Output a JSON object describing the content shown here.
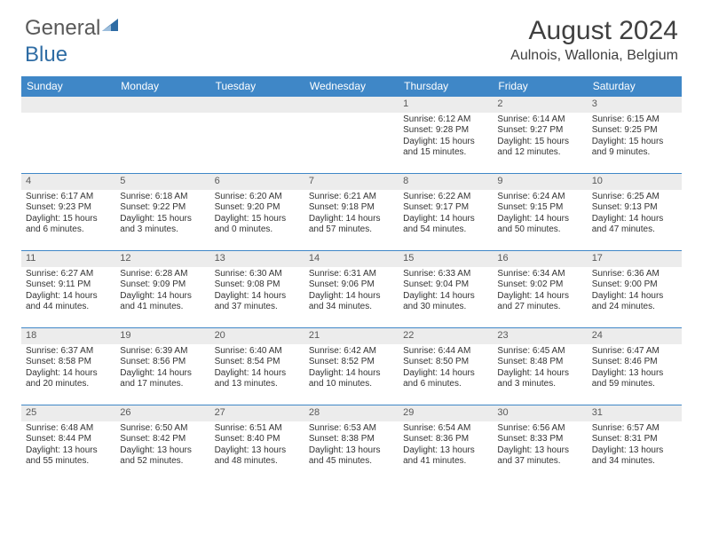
{
  "logo": {
    "text1": "General",
    "text2": "Blue"
  },
  "title": "August 2024",
  "location": "Aulnois, Wallonia, Belgium",
  "colors": {
    "header_bg": "#3f87c7",
    "header_text": "#ffffff",
    "daynum_bg": "#ececec",
    "text": "#333333",
    "border": "#3f87c7",
    "logo_gray": "#595959",
    "logo_blue": "#2e6ca4"
  },
  "dayNames": [
    "Sunday",
    "Monday",
    "Tuesday",
    "Wednesday",
    "Thursday",
    "Friday",
    "Saturday"
  ],
  "weeks": [
    [
      null,
      null,
      null,
      null,
      {
        "n": "1",
        "sr": "Sunrise: 6:12 AM",
        "ss": "Sunset: 9:28 PM",
        "dl": "Daylight: 15 hours and 15 minutes."
      },
      {
        "n": "2",
        "sr": "Sunrise: 6:14 AM",
        "ss": "Sunset: 9:27 PM",
        "dl": "Daylight: 15 hours and 12 minutes."
      },
      {
        "n": "3",
        "sr": "Sunrise: 6:15 AM",
        "ss": "Sunset: 9:25 PM",
        "dl": "Daylight: 15 hours and 9 minutes."
      }
    ],
    [
      {
        "n": "4",
        "sr": "Sunrise: 6:17 AM",
        "ss": "Sunset: 9:23 PM",
        "dl": "Daylight: 15 hours and 6 minutes."
      },
      {
        "n": "5",
        "sr": "Sunrise: 6:18 AM",
        "ss": "Sunset: 9:22 PM",
        "dl": "Daylight: 15 hours and 3 minutes."
      },
      {
        "n": "6",
        "sr": "Sunrise: 6:20 AM",
        "ss": "Sunset: 9:20 PM",
        "dl": "Daylight: 15 hours and 0 minutes."
      },
      {
        "n": "7",
        "sr": "Sunrise: 6:21 AM",
        "ss": "Sunset: 9:18 PM",
        "dl": "Daylight: 14 hours and 57 minutes."
      },
      {
        "n": "8",
        "sr": "Sunrise: 6:22 AM",
        "ss": "Sunset: 9:17 PM",
        "dl": "Daylight: 14 hours and 54 minutes."
      },
      {
        "n": "9",
        "sr": "Sunrise: 6:24 AM",
        "ss": "Sunset: 9:15 PM",
        "dl": "Daylight: 14 hours and 50 minutes."
      },
      {
        "n": "10",
        "sr": "Sunrise: 6:25 AM",
        "ss": "Sunset: 9:13 PM",
        "dl": "Daylight: 14 hours and 47 minutes."
      }
    ],
    [
      {
        "n": "11",
        "sr": "Sunrise: 6:27 AM",
        "ss": "Sunset: 9:11 PM",
        "dl": "Daylight: 14 hours and 44 minutes."
      },
      {
        "n": "12",
        "sr": "Sunrise: 6:28 AM",
        "ss": "Sunset: 9:09 PM",
        "dl": "Daylight: 14 hours and 41 minutes."
      },
      {
        "n": "13",
        "sr": "Sunrise: 6:30 AM",
        "ss": "Sunset: 9:08 PM",
        "dl": "Daylight: 14 hours and 37 minutes."
      },
      {
        "n": "14",
        "sr": "Sunrise: 6:31 AM",
        "ss": "Sunset: 9:06 PM",
        "dl": "Daylight: 14 hours and 34 minutes."
      },
      {
        "n": "15",
        "sr": "Sunrise: 6:33 AM",
        "ss": "Sunset: 9:04 PM",
        "dl": "Daylight: 14 hours and 30 minutes."
      },
      {
        "n": "16",
        "sr": "Sunrise: 6:34 AM",
        "ss": "Sunset: 9:02 PM",
        "dl": "Daylight: 14 hours and 27 minutes."
      },
      {
        "n": "17",
        "sr": "Sunrise: 6:36 AM",
        "ss": "Sunset: 9:00 PM",
        "dl": "Daylight: 14 hours and 24 minutes."
      }
    ],
    [
      {
        "n": "18",
        "sr": "Sunrise: 6:37 AM",
        "ss": "Sunset: 8:58 PM",
        "dl": "Daylight: 14 hours and 20 minutes."
      },
      {
        "n": "19",
        "sr": "Sunrise: 6:39 AM",
        "ss": "Sunset: 8:56 PM",
        "dl": "Daylight: 14 hours and 17 minutes."
      },
      {
        "n": "20",
        "sr": "Sunrise: 6:40 AM",
        "ss": "Sunset: 8:54 PM",
        "dl": "Daylight: 14 hours and 13 minutes."
      },
      {
        "n": "21",
        "sr": "Sunrise: 6:42 AM",
        "ss": "Sunset: 8:52 PM",
        "dl": "Daylight: 14 hours and 10 minutes."
      },
      {
        "n": "22",
        "sr": "Sunrise: 6:44 AM",
        "ss": "Sunset: 8:50 PM",
        "dl": "Daylight: 14 hours and 6 minutes."
      },
      {
        "n": "23",
        "sr": "Sunrise: 6:45 AM",
        "ss": "Sunset: 8:48 PM",
        "dl": "Daylight: 14 hours and 3 minutes."
      },
      {
        "n": "24",
        "sr": "Sunrise: 6:47 AM",
        "ss": "Sunset: 8:46 PM",
        "dl": "Daylight: 13 hours and 59 minutes."
      }
    ],
    [
      {
        "n": "25",
        "sr": "Sunrise: 6:48 AM",
        "ss": "Sunset: 8:44 PM",
        "dl": "Daylight: 13 hours and 55 minutes."
      },
      {
        "n": "26",
        "sr": "Sunrise: 6:50 AM",
        "ss": "Sunset: 8:42 PM",
        "dl": "Daylight: 13 hours and 52 minutes."
      },
      {
        "n": "27",
        "sr": "Sunrise: 6:51 AM",
        "ss": "Sunset: 8:40 PM",
        "dl": "Daylight: 13 hours and 48 minutes."
      },
      {
        "n": "28",
        "sr": "Sunrise: 6:53 AM",
        "ss": "Sunset: 8:38 PM",
        "dl": "Daylight: 13 hours and 45 minutes."
      },
      {
        "n": "29",
        "sr": "Sunrise: 6:54 AM",
        "ss": "Sunset: 8:36 PM",
        "dl": "Daylight: 13 hours and 41 minutes."
      },
      {
        "n": "30",
        "sr": "Sunrise: 6:56 AM",
        "ss": "Sunset: 8:33 PM",
        "dl": "Daylight: 13 hours and 37 minutes."
      },
      {
        "n": "31",
        "sr": "Sunrise: 6:57 AM",
        "ss": "Sunset: 8:31 PM",
        "dl": "Daylight: 13 hours and 34 minutes."
      }
    ]
  ]
}
